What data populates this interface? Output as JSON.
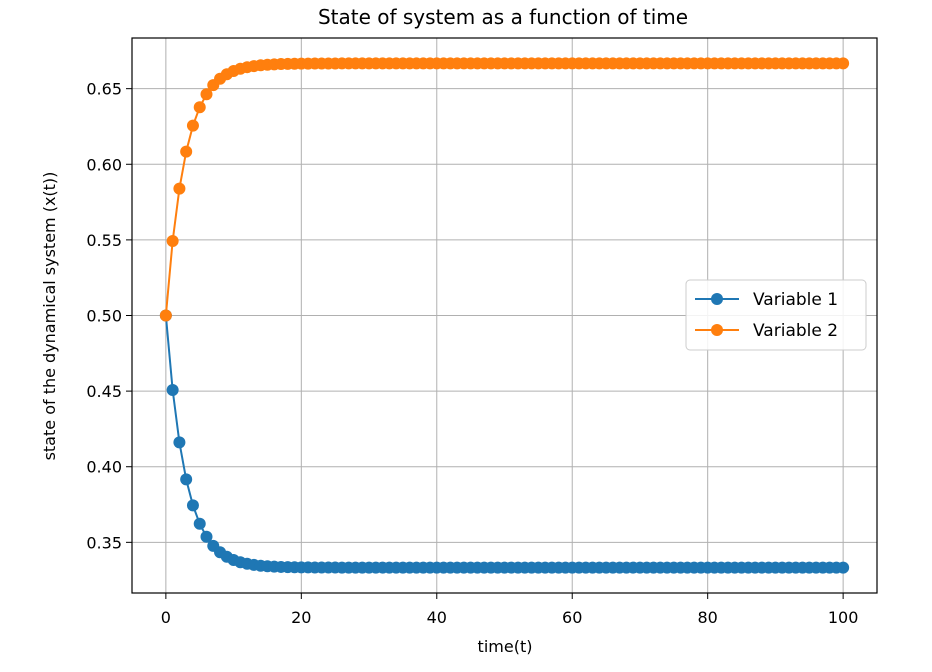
{
  "chart_data": {
    "type": "line",
    "title": "State of system as a function of time",
    "xlabel": "time(t)",
    "ylabel": "state of the dynamical system (x(t))",
    "xlim": [
      -5,
      105
    ],
    "ylim": [
      0.3165,
      0.6835
    ],
    "xticks": [
      "0",
      "20",
      "40",
      "60",
      "80",
      "100"
    ],
    "yticks": [
      "0.35",
      "0.40",
      "0.45",
      "0.50",
      "0.55",
      "0.60",
      "0.65"
    ],
    "grid": true,
    "legend": "center-right",
    "markers": "circle",
    "t_start": 0,
    "t_end": 100,
    "series": [
      {
        "name": "Variable 1",
        "color": "#1f77b4",
        "initial": 0.5,
        "equilibrium": 0.3333,
        "rate": 0.35
      },
      {
        "name": "Variable 2",
        "color": "#ff7f0e",
        "initial": 0.5,
        "equilibrium": 0.6667,
        "rate": 0.35
      }
    ]
  }
}
